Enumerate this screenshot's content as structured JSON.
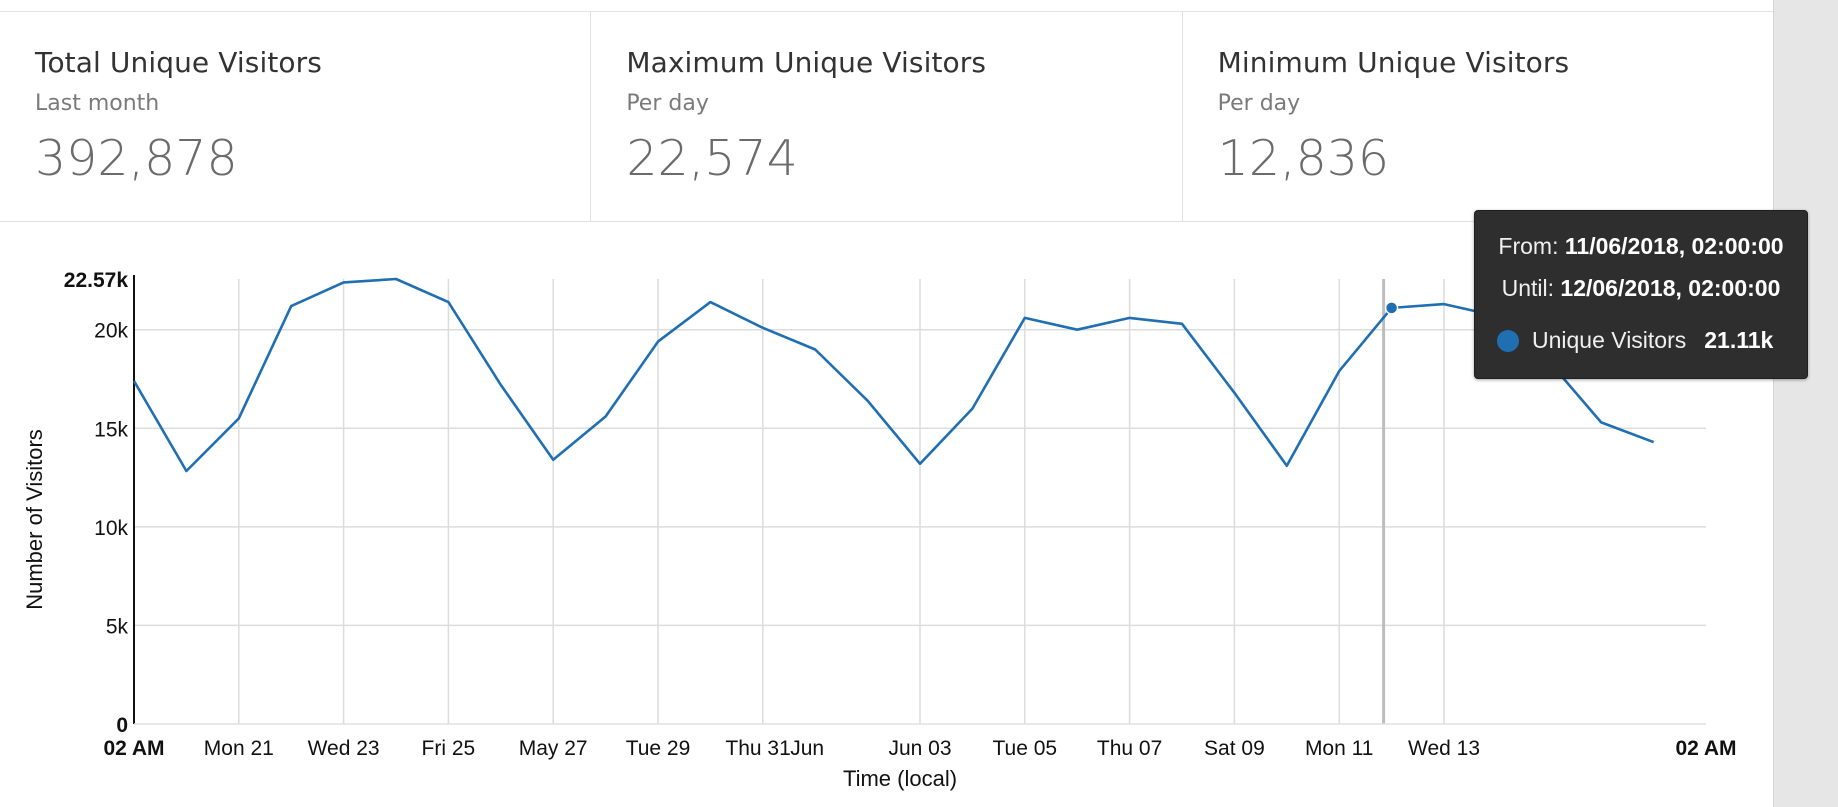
{
  "stats": [
    {
      "title": "Total Unique Visitors",
      "subtitle": "Last month",
      "value": "392,878"
    },
    {
      "title": "Maximum Unique Visitors",
      "subtitle": "Per day",
      "value": "22,574"
    },
    {
      "title": "Minimum Unique Visitors",
      "subtitle": "Per day",
      "value": "12,836"
    }
  ],
  "chart_data": {
    "type": "line",
    "xlabel": "Time (local)",
    "ylabel": "Number of Visitors",
    "ylim": [
      0,
      22574
    ],
    "y_ticks": [
      {
        "value": 0,
        "label": "0",
        "bold": true
      },
      {
        "value": 5000,
        "label": "5k",
        "bold": false
      },
      {
        "value": 10000,
        "label": "10k",
        "bold": false
      },
      {
        "value": 15000,
        "label": "15k",
        "bold": false
      },
      {
        "value": 20000,
        "label": "20k",
        "bold": false
      },
      {
        "value": 22574,
        "label": "22.57k",
        "bold": true
      }
    ],
    "x_ticks": [
      {
        "date": "2018-05-19",
        "label": "02 AM",
        "bold": true
      },
      {
        "date": "2018-05-21",
        "label": "Mon 21",
        "bold": false
      },
      {
        "date": "2018-05-23",
        "label": "Wed 23",
        "bold": false
      },
      {
        "date": "2018-05-25",
        "label": "Fri 25",
        "bold": false
      },
      {
        "date": "2018-05-27",
        "label": "May 27",
        "bold": false
      },
      {
        "date": "2018-05-29",
        "label": "Tue 29",
        "bold": false
      },
      {
        "date": "2018-05-31",
        "label": "Thu 31",
        "bold": false
      },
      {
        "date": "2018-06-01",
        "label": "Jun",
        "bold": false
      },
      {
        "date": "2018-06-03",
        "label": "Jun 03",
        "bold": false
      },
      {
        "date": "2018-06-05",
        "label": "Tue 05",
        "bold": false
      },
      {
        "date": "2018-06-07",
        "label": "Thu 07",
        "bold": false
      },
      {
        "date": "2018-06-09",
        "label": "Sat 09",
        "bold": false
      },
      {
        "date": "2018-06-11",
        "label": "Mon 11",
        "bold": false
      },
      {
        "date": "2018-06-13",
        "label": "Wed 13",
        "bold": false
      },
      {
        "date": "2018-06-18",
        "label": "02 AM",
        "bold": true
      }
    ],
    "grid": true,
    "series": [
      {
        "name": "Unique Visitors",
        "color": "#1f6fb2",
        "points": [
          {
            "x": "2018-05-19",
            "y": 17400
          },
          {
            "x": "2018-05-20",
            "y": 12836
          },
          {
            "x": "2018-05-21",
            "y": 15500
          },
          {
            "x": "2018-05-22",
            "y": 21200
          },
          {
            "x": "2018-05-23",
            "y": 22400
          },
          {
            "x": "2018-05-24",
            "y": 22574
          },
          {
            "x": "2018-05-25",
            "y": 21400
          },
          {
            "x": "2018-05-26",
            "y": 17200
          },
          {
            "x": "2018-05-27",
            "y": 13400
          },
          {
            "x": "2018-05-28",
            "y": 15600
          },
          {
            "x": "2018-05-29",
            "y": 19400
          },
          {
            "x": "2018-05-30",
            "y": 21400
          },
          {
            "x": "2018-05-31",
            "y": 20100
          },
          {
            "x": "2018-06-01",
            "y": 19000
          },
          {
            "x": "2018-06-02",
            "y": 16400
          },
          {
            "x": "2018-06-03",
            "y": 13200
          },
          {
            "x": "2018-06-04",
            "y": 16000
          },
          {
            "x": "2018-06-05",
            "y": 20600
          },
          {
            "x": "2018-06-06",
            "y": 20000
          },
          {
            "x": "2018-06-07",
            "y": 20600
          },
          {
            "x": "2018-06-08",
            "y": 20300
          },
          {
            "x": "2018-06-09",
            "y": 16800
          },
          {
            "x": "2018-06-10",
            "y": 13100
          },
          {
            "x": "2018-06-11",
            "y": 17900
          },
          {
            "x": "2018-06-12",
            "y": 21110
          },
          {
            "x": "2018-06-13",
            "y": 21300
          },
          {
            "x": "2018-06-14",
            "y": 20700
          },
          {
            "x": "2018-06-15",
            "y": 18400
          },
          {
            "x": "2018-06-16",
            "y": 15300
          },
          {
            "x": "2018-06-17",
            "y": 14300
          }
        ]
      }
    ],
    "highlight_x": "2018-06-12",
    "tooltip": {
      "from_label": "From:",
      "from_value": "11/06/2018, 02:00:00",
      "until_label": "Until:",
      "until_value": "12/06/2018, 02:00:00",
      "series_name": "Unique Visitors",
      "series_value": "21.11k"
    }
  }
}
